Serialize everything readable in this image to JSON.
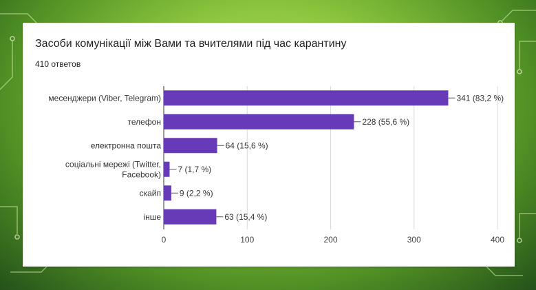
{
  "slide": {
    "background_accent": "#8cc63e"
  },
  "header": {
    "title": "Засоби комунікації між Вами та вчителями під час карантину",
    "response_count": "410 ответов"
  },
  "chart_data": {
    "type": "bar",
    "orientation": "horizontal",
    "bar_color": "#673ab7",
    "categories": [
      [
        "месенджери (Viber, Telegram)"
      ],
      [
        "телефон"
      ],
      [
        "електронна пошта"
      ],
      [
        "соціальні мережі (Twitter,",
        "Facebook)"
      ],
      [
        "скайп"
      ],
      [
        "інше"
      ]
    ],
    "values": [
      341,
      228,
      64,
      7,
      9,
      63
    ],
    "labels": [
      "341 (83,2 %)",
      "228 (55,6 %)",
      "64 (15,6 %)",
      "7 (1,7 %)",
      "9 (2,2 %)",
      "63 (15,4 %)"
    ],
    "xlim": [
      0,
      400
    ],
    "xticks": [
      0,
      100,
      200,
      300,
      400
    ],
    "grid": true
  }
}
